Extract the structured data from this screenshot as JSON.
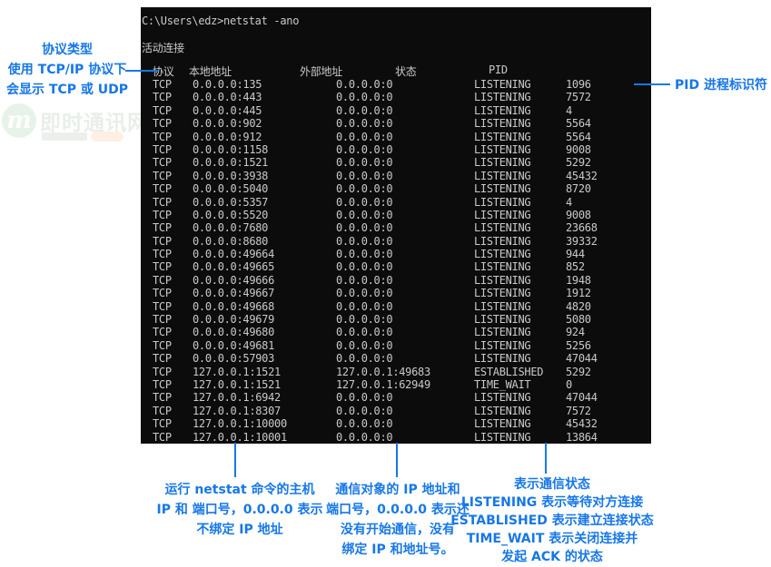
{
  "terminal": {
    "command_line": "C:\\Users\\edz>netstat -ano",
    "active_connections_label": "活动连接",
    "columns": [
      "协议",
      "本地地址",
      "外部地址",
      "状态",
      "PID"
    ],
    "rows": [
      {
        "proto": "TCP",
        "local": "0.0.0.0:135",
        "foreign": "0.0.0.0:0",
        "state": "LISTENING",
        "pid": "1096"
      },
      {
        "proto": "TCP",
        "local": "0.0.0.0:443",
        "foreign": "0.0.0.0:0",
        "state": "LISTENING",
        "pid": "7572"
      },
      {
        "proto": "TCP",
        "local": "0.0.0.0:445",
        "foreign": "0.0.0.0:0",
        "state": "LISTENING",
        "pid": "4"
      },
      {
        "proto": "TCP",
        "local": "0.0.0.0:902",
        "foreign": "0.0.0.0:0",
        "state": "LISTENING",
        "pid": "5564"
      },
      {
        "proto": "TCP",
        "local": "0.0.0.0:912",
        "foreign": "0.0.0.0:0",
        "state": "LISTENING",
        "pid": "5564"
      },
      {
        "proto": "TCP",
        "local": "0.0.0.0:1158",
        "foreign": "0.0.0.0:0",
        "state": "LISTENING",
        "pid": "9008"
      },
      {
        "proto": "TCP",
        "local": "0.0.0.0:1521",
        "foreign": "0.0.0.0:0",
        "state": "LISTENING",
        "pid": "5292"
      },
      {
        "proto": "TCP",
        "local": "0.0.0.0:3938",
        "foreign": "0.0.0.0:0",
        "state": "LISTENING",
        "pid": "45432"
      },
      {
        "proto": "TCP",
        "local": "0.0.0.0:5040",
        "foreign": "0.0.0.0:0",
        "state": "LISTENING",
        "pid": "8720"
      },
      {
        "proto": "TCP",
        "local": "0.0.0.0:5357",
        "foreign": "0.0.0.0:0",
        "state": "LISTENING",
        "pid": "4"
      },
      {
        "proto": "TCP",
        "local": "0.0.0.0:5520",
        "foreign": "0.0.0.0:0",
        "state": "LISTENING",
        "pid": "9008"
      },
      {
        "proto": "TCP",
        "local": "0.0.0.0:7680",
        "foreign": "0.0.0.0:0",
        "state": "LISTENING",
        "pid": "23668"
      },
      {
        "proto": "TCP",
        "local": "0.0.0.0:8680",
        "foreign": "0.0.0.0:0",
        "state": "LISTENING",
        "pid": "39332"
      },
      {
        "proto": "TCP",
        "local": "0.0.0.0:49664",
        "foreign": "0.0.0.0:0",
        "state": "LISTENING",
        "pid": "944"
      },
      {
        "proto": "TCP",
        "local": "0.0.0.0:49665",
        "foreign": "0.0.0.0:0",
        "state": "LISTENING",
        "pid": "852"
      },
      {
        "proto": "TCP",
        "local": "0.0.0.0:49666",
        "foreign": "0.0.0.0:0",
        "state": "LISTENING",
        "pid": "1948"
      },
      {
        "proto": "TCP",
        "local": "0.0.0.0:49667",
        "foreign": "0.0.0.0:0",
        "state": "LISTENING",
        "pid": "1912"
      },
      {
        "proto": "TCP",
        "local": "0.0.0.0:49668",
        "foreign": "0.0.0.0:0",
        "state": "LISTENING",
        "pid": "4820"
      },
      {
        "proto": "TCP",
        "local": "0.0.0.0:49679",
        "foreign": "0.0.0.0:0",
        "state": "LISTENING",
        "pid": "5080"
      },
      {
        "proto": "TCP",
        "local": "0.0.0.0:49680",
        "foreign": "0.0.0.0:0",
        "state": "LISTENING",
        "pid": "924"
      },
      {
        "proto": "TCP",
        "local": "0.0.0.0:49681",
        "foreign": "0.0.0.0:0",
        "state": "LISTENING",
        "pid": "5256"
      },
      {
        "proto": "TCP",
        "local": "0.0.0.0:57903",
        "foreign": "0.0.0.0:0",
        "state": "LISTENING",
        "pid": "47044"
      },
      {
        "proto": "TCP",
        "local": "127.0.0.1:1521",
        "foreign": "127.0.0.1:49683",
        "state": "ESTABLISHED",
        "pid": "5292"
      },
      {
        "proto": "TCP",
        "local": "127.0.0.1:1521",
        "foreign": "127.0.0.1:62949",
        "state": "TIME_WAIT",
        "pid": "0"
      },
      {
        "proto": "TCP",
        "local": "127.0.0.1:6942",
        "foreign": "0.0.0.0:0",
        "state": "LISTENING",
        "pid": "47044"
      },
      {
        "proto": "TCP",
        "local": "127.0.0.1:8307",
        "foreign": "0.0.0.0:0",
        "state": "LISTENING",
        "pid": "7572"
      },
      {
        "proto": "TCP",
        "local": "127.0.0.1:10000",
        "foreign": "0.0.0.0:0",
        "state": "LISTENING",
        "pid": "45432"
      },
      {
        "proto": "TCP",
        "local": "127.0.0.1:10001",
        "foreign": "0.0.0.0:0",
        "state": "LISTENING",
        "pid": "13864"
      }
    ]
  },
  "annotations": {
    "protocol": {
      "lines": [
        "协议类型",
        "使用 TCP/IP 协议下",
        "会显示 TCP 或 UDP"
      ]
    },
    "pid": {
      "label": "PID 进程标识符"
    },
    "local_address": {
      "lines": [
        "运行 netstat 命令的主机",
        "IP 和 端口号，0.0.0.0 表示",
        "不绑定 IP 地址"
      ]
    },
    "foreign_address": {
      "lines": [
        "通信对象的 IP 地址和",
        "端口号，0.0.0.0 表示还",
        "没有开始通信，没有",
        "绑定 IP 和地址号。"
      ]
    },
    "state": {
      "lines": [
        "表示通信状态",
        "LISTENING 表示等待对方连接",
        "ESTABLISHED 表示建立连接状态",
        "TIME_WAIT 表示关闭连接并",
        "发起 ACK 的状态"
      ]
    }
  },
  "watermark": {
    "logo_letter": "m",
    "site_name": "即时通讯网"
  },
  "colors": {
    "annotation_blue": "#1677e8",
    "terminal_bg": "#0c0c0c",
    "terminal_text": "#c9c9c9",
    "watermark_green": "#3fa548",
    "watermark_orange": "#ff7f2a"
  }
}
